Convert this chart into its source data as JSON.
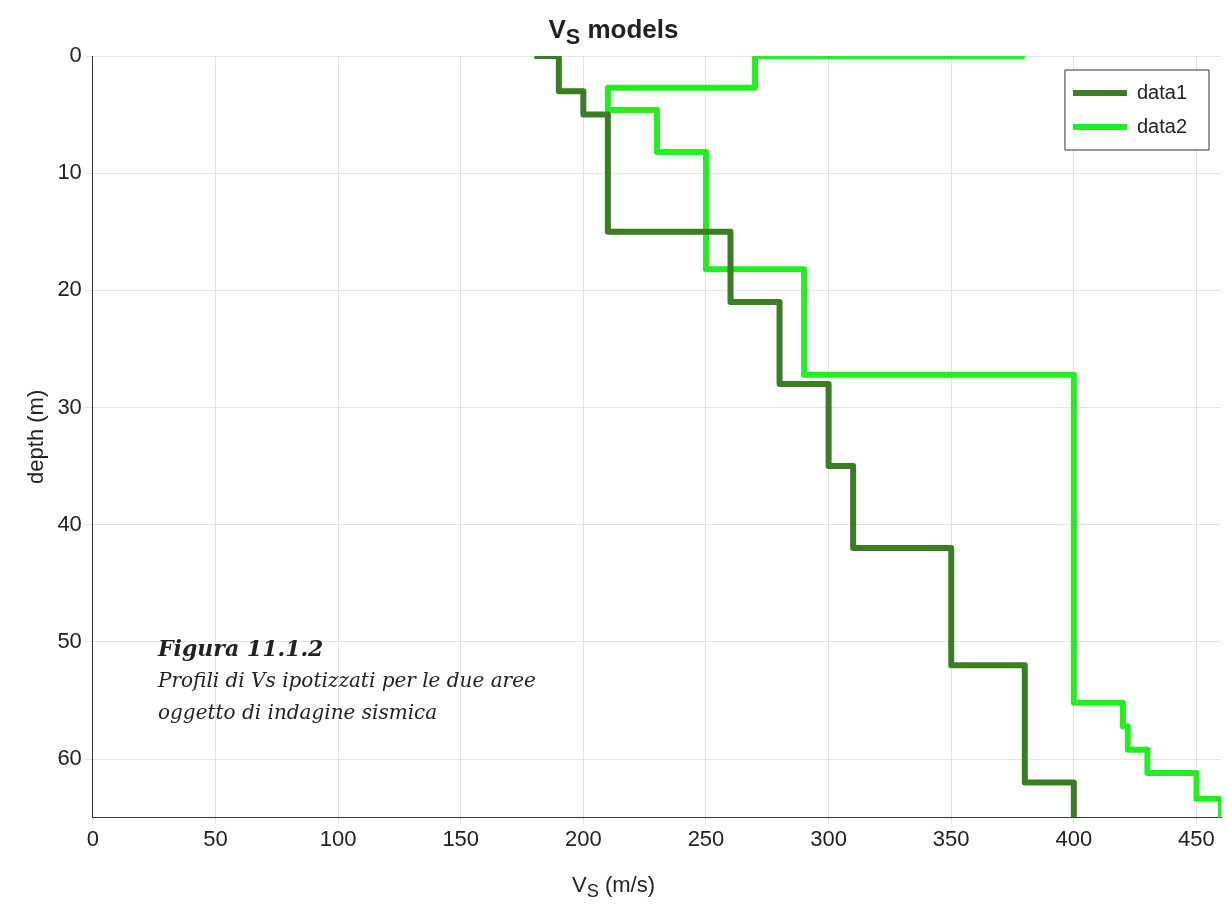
{
  "chart_data": {
    "type": "line",
    "title": "V$_{S}$ models",
    "xlabel": "V$_{S}$ (m/s)",
    "ylabel": "depth (m)",
    "xlim": [
      0,
      460
    ],
    "xticks": [
      0,
      50,
      100,
      150,
      200,
      250,
      300,
      350,
      400,
      450
    ],
    "ylim": [
      65,
      0
    ],
    "yticks": [
      0,
      10,
      20,
      30,
      40,
      50,
      60
    ],
    "grid": true,
    "legend": "top right",
    "marker": "none",
    "line_style": "solid",
    "annotations": [
      "Figura 11.1.2",
      "Profili di Vs ipotizzati per le due aree oggetto di indagine sismica"
    ],
    "series": [
      {
        "name": "data1",
        "color": "#3a7d22",
        "x": [
          180,
          190,
          190,
          200,
          200,
          210,
          210,
          260,
          260,
          280,
          280,
          300,
          300,
          310,
          310,
          350,
          350,
          380,
          380,
          400,
          400
        ],
        "values": [
          0,
          0,
          3,
          3,
          5,
          5,
          15,
          15,
          21,
          21,
          28,
          28,
          35,
          35,
          42,
          42,
          52,
          52,
          62,
          62,
          65
        ]
      },
      {
        "name": "data2",
        "color": "#22ee22",
        "x": [
          380,
          270,
          270,
          210,
          210,
          230,
          230,
          250,
          250,
          290,
          290,
          400,
          400,
          420,
          420,
          422,
          422,
          430,
          430,
          450,
          450,
          460,
          460
        ],
        "values": [
          0,
          0,
          2.7,
          2.7,
          4.6,
          4.6,
          8.2,
          8.2,
          18.2,
          18.2,
          27.2,
          27.2,
          55.2,
          55.2,
          57.2,
          57.2,
          59.2,
          59.2,
          61.2,
          61.2,
          63.4,
          63.4,
          65
        ]
      }
    ]
  }
}
